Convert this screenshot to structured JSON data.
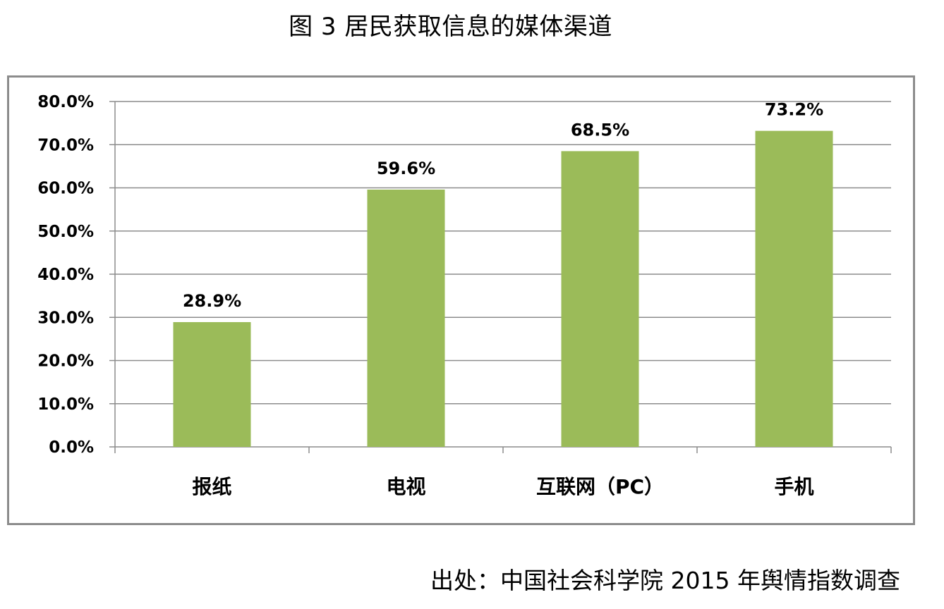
{
  "figure": {
    "title": "图 3  居民获取信息的媒体渠道",
    "source": "出处：中国社会科学院 2015 年舆情指数调查"
  },
  "chart_data": {
    "type": "bar",
    "categories": [
      "报纸",
      "电视",
      "互联网（PC）",
      "手机"
    ],
    "values": [
      28.9,
      59.6,
      68.5,
      73.2
    ],
    "data_labels": [
      "28.9%",
      "59.6%",
      "68.5%",
      "73.2%"
    ],
    "y_ticks": [
      "0.0%",
      "10.0%",
      "20.0%",
      "30.0%",
      "40.0%",
      "50.0%",
      "60.0%",
      "70.0%",
      "80.0%"
    ],
    "ylim": [
      0,
      80
    ],
    "grid": true,
    "legend": "none",
    "bar_color": "#9bbb59",
    "grid_color": "#8c8c8c"
  }
}
